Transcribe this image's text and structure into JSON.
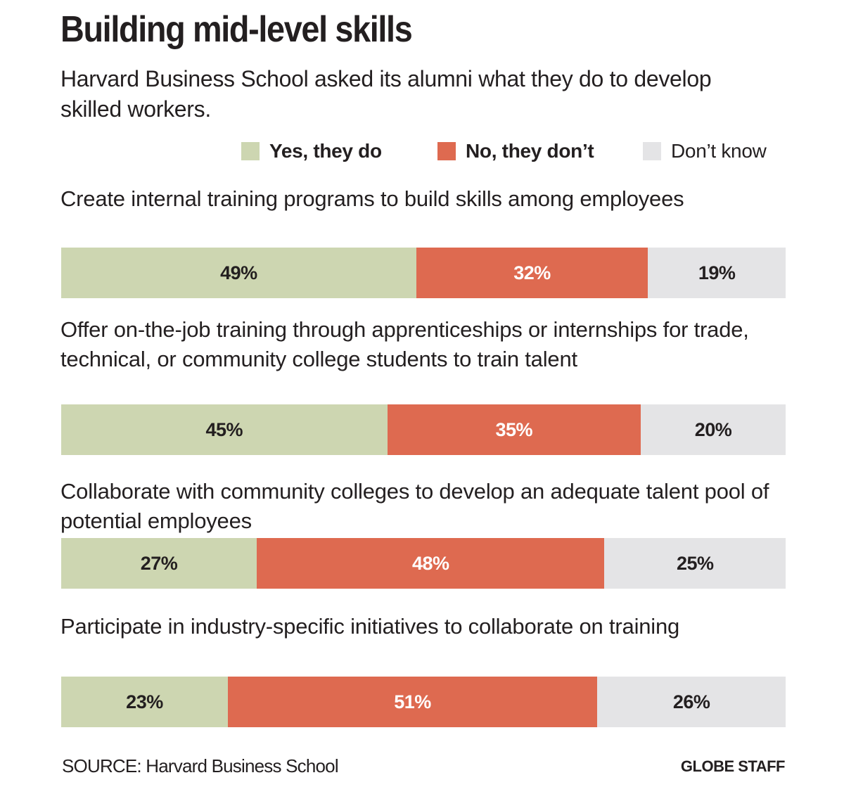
{
  "chart_data": {
    "type": "bar",
    "title": "Building mid-level skills",
    "subtitle": "Harvard Business School asked its alumni what they do to develop skilled workers.",
    "stacked": true,
    "orientation": "horizontal",
    "unit": "%",
    "legend_position": "top-right",
    "categories": [
      "Create internal training programs to build skills among employees",
      "Offer on-the-job training through apprenticeships or internships for trade, technical, or community college students to train talent",
      "Collaborate with community colleges to develop an adequate talent pool of potential employees",
      "Participate in industry-specific initiatives to collaborate on training"
    ],
    "series": [
      {
        "name": "Yes, they do",
        "values": [
          49,
          45,
          27,
          23
        ],
        "labels": [
          "49%",
          "45%",
          "27%",
          "23%"
        ],
        "color": "#cdd6b1"
      },
      {
        "name": "No, they don’t",
        "values": [
          32,
          35,
          48,
          51
        ],
        "labels": [
          "32%",
          "35%",
          "48%",
          "51%"
        ],
        "color": "#de6a50"
      },
      {
        "name": "Don’t know",
        "values": [
          19,
          20,
          25,
          26
        ],
        "labels": [
          "19%",
          "20%",
          "25%",
          "26%"
        ],
        "color": "#e4e4e6"
      }
    ],
    "source": "SOURCE: Harvard Business School",
    "credit": "GLOBE STAFF"
  }
}
